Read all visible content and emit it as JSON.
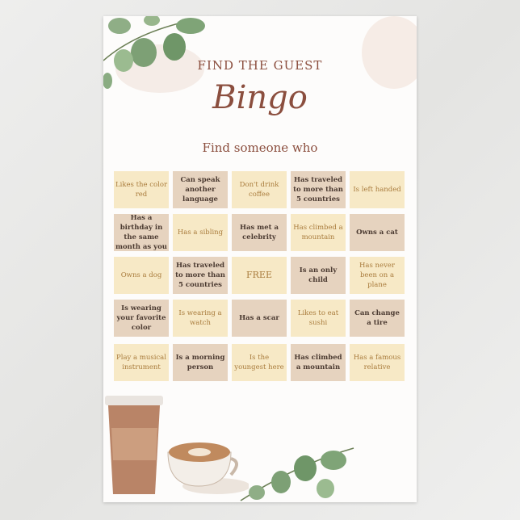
{
  "header": {
    "subtitle": "FIND THE GUEST",
    "title": "Bingo",
    "prompt": "Find someone who"
  },
  "grid": [
    [
      "Likes the color red",
      "Can speak another language",
      "Don't drink coffee",
      "Has traveled to more than 5 countries",
      "Is left handed"
    ],
    [
      "Has a birthday in the same month as you",
      "Has a sibling",
      "Has met a celebrity",
      "Has climbed a mountain",
      "Owns a cat"
    ],
    [
      "Owns a dog",
      "Has traveled to more than 5 countries",
      "FREE",
      "Is an only child",
      "Has never been on a plane"
    ],
    [
      "Is wearing your favorite color",
      "Is wearing a watch",
      "Has a scar",
      "Likes to eat sushi",
      "Can change a tire"
    ],
    [
      "Play a musical instrument",
      "Is a morning person",
      "Is the youngest here",
      "Has climbed a mountain",
      "Has a famous relative"
    ]
  ],
  "colors": {
    "title": "#8b4e3e",
    "cell_light": "#f7e9c6",
    "cell_dark": "#e6d3bf",
    "text_light": "#a97c3d",
    "text_dark": "#4b3a31"
  },
  "decorations": [
    "eucalyptus-icon",
    "coffee-cup-icon",
    "latte-icon"
  ]
}
